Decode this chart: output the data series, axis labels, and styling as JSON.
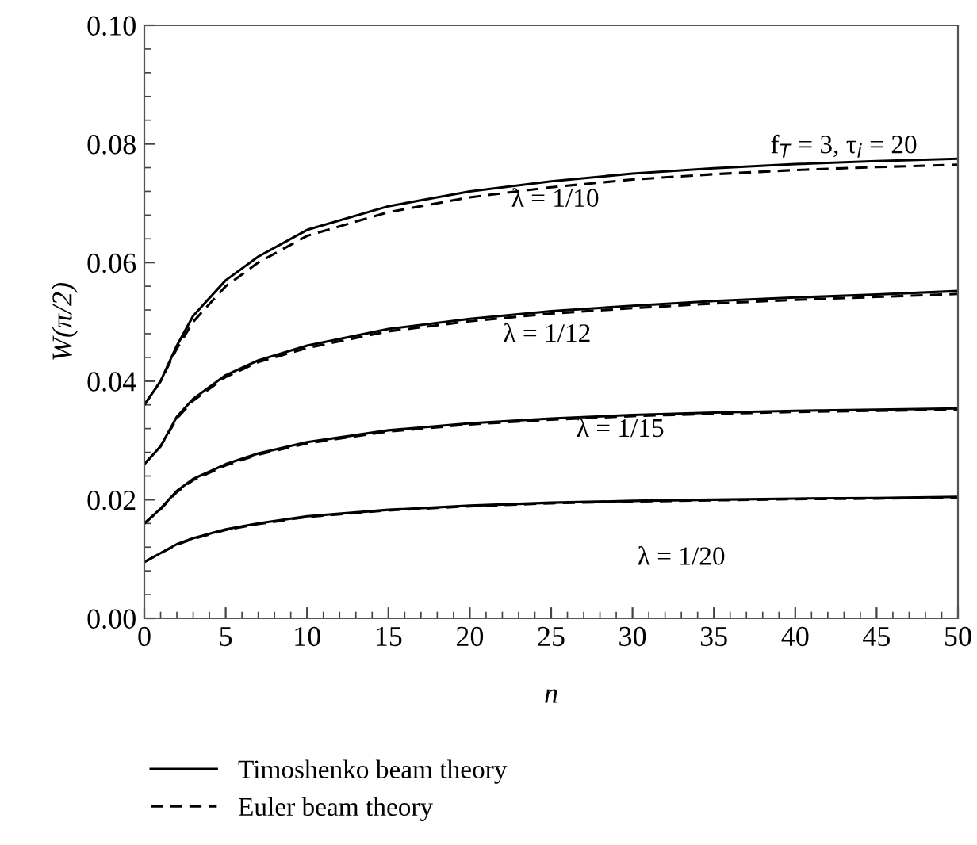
{
  "chart_data": {
    "type": "line",
    "xlabel": "n",
    "ylabel": "W(π/2)",
    "x": [
      0,
      1,
      2,
      3,
      5,
      7,
      10,
      15,
      20,
      25,
      30,
      35,
      40,
      45,
      50
    ],
    "xlim": [
      0,
      50
    ],
    "xticks": [
      0,
      5,
      10,
      15,
      20,
      25,
      30,
      35,
      40,
      45,
      50
    ],
    "ylim": [
      0,
      0.1
    ],
    "yticks": [
      {
        "value": 0,
        "label": "0.00"
      },
      {
        "value": 0.02,
        "label": "0.02"
      },
      {
        "value": 0.04,
        "label": "0.04"
      },
      {
        "value": 0.06,
        "label": "0.06"
      },
      {
        "value": 0.08,
        "label": "0.08"
      },
      {
        "value": 0.1,
        "label": "0.10"
      }
    ],
    "grid": false,
    "legend": "bottom",
    "marker": "none",
    "series": [
      {
        "name": "Timoshenko beam theory",
        "color": "#000000",
        "line_style": "solid",
        "values": [
          0.036,
          0.04,
          0.046,
          0.051,
          0.057,
          0.061,
          0.0655,
          0.0695,
          0.072,
          0.0737,
          0.075,
          0.0759,
          0.0766,
          0.0771,
          0.0775
        ]
      },
      {
        "name": "Euler beam theory",
        "color": "#000000",
        "line_style": "dashed",
        "values": [
          0.036,
          0.04,
          0.0455,
          0.05,
          0.056,
          0.06,
          0.0645,
          0.0685,
          0.071,
          0.0727,
          0.074,
          0.0749,
          0.0756,
          0.0761,
          0.0765
        ]
      },
      {
        "color": "#000000",
        "line_style": "solid",
        "values": [
          0.026,
          0.029,
          0.034,
          0.037,
          0.041,
          0.0435,
          0.046,
          0.0488,
          0.0505,
          0.0518,
          0.0527,
          0.0535,
          0.0541,
          0.0546,
          0.0552
        ]
      },
      {
        "color": "#000000",
        "line_style": "dashed",
        "values": [
          0.026,
          0.029,
          0.0337,
          0.0367,
          0.0407,
          0.0432,
          0.0456,
          0.0484,
          0.0501,
          0.0514,
          0.0523,
          0.0531,
          0.0537,
          0.0542,
          0.0547
        ]
      },
      {
        "color": "#000000",
        "line_style": "solid",
        "values": [
          0.016,
          0.0185,
          0.0215,
          0.0235,
          0.026,
          0.0278,
          0.0297,
          0.0317,
          0.0329,
          0.0337,
          0.0343,
          0.0347,
          0.035,
          0.0352,
          0.0354
        ]
      },
      {
        "color": "#000000",
        "line_style": "dashed",
        "values": [
          0.016,
          0.0184,
          0.0213,
          0.0233,
          0.0258,
          0.0276,
          0.0295,
          0.0315,
          0.0327,
          0.0335,
          0.0341,
          0.0345,
          0.0348,
          0.035,
          0.0352
        ]
      },
      {
        "color": "#000000",
        "line_style": "solid",
        "values": [
          0.0095,
          0.011,
          0.0125,
          0.0135,
          0.015,
          0.016,
          0.0172,
          0.0183,
          0.019,
          0.0195,
          0.0198,
          0.02,
          0.0202,
          0.0203,
          0.0205
        ]
      },
      {
        "color": "#000000",
        "line_style": "dashed",
        "values": [
          0.0095,
          0.011,
          0.0124,
          0.0134,
          0.0149,
          0.0159,
          0.0171,
          0.0182,
          0.0189,
          0.0194,
          0.0197,
          0.0199,
          0.0201,
          0.0202,
          0.0204
        ]
      }
    ],
    "annotations": [
      "λ = 1/10",
      "λ = 1/12",
      "λ = 1/15",
      "λ = 1/20",
      "f$_{T}$ = 3, τ$_{i}$ = 20"
    ]
  }
}
